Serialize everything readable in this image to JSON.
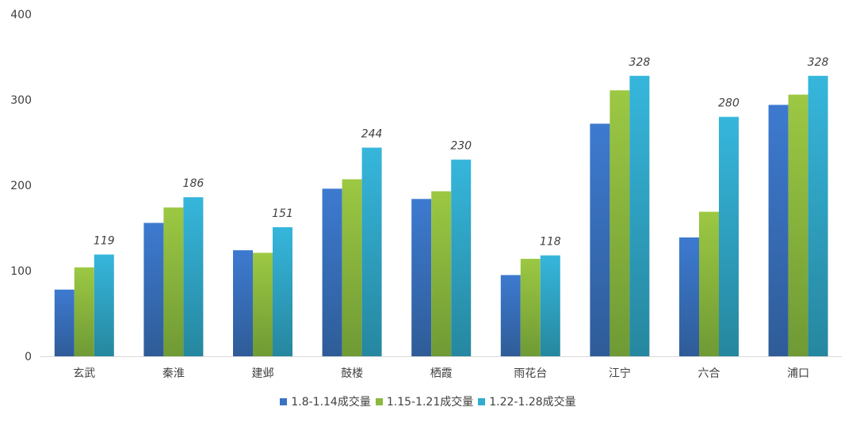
{
  "chart_data": {
    "type": "bar",
    "title": "",
    "xlabel": "",
    "ylabel": "",
    "ylim": [
      0,
      400
    ],
    "yticks": [
      0,
      100,
      200,
      300,
      400
    ],
    "categories": [
      "玄武",
      "秦淮",
      "建邺",
      "鼓楼",
      "栖霞",
      "雨花台",
      "江宁",
      "六合",
      "浦口"
    ],
    "series": [
      {
        "name": "1.8-1.14成交量",
        "color": "#3a72c4",
        "values": [
          78,
          156,
          124,
          196,
          184,
          95,
          272,
          139,
          294
        ]
      },
      {
        "name": "1.15-1.21成交量",
        "color": "#8cb83f",
        "values": [
          104,
          174,
          121,
          207,
          193,
          114,
          311,
          169,
          306
        ]
      },
      {
        "name": "1.22-1.28成交量",
        "color": "#31acd0",
        "values": [
          119,
          186,
          151,
          244,
          230,
          118,
          328,
          280,
          328
        ]
      }
    ],
    "data_labels_series": 2,
    "legend": "bottom",
    "grid": false
  }
}
